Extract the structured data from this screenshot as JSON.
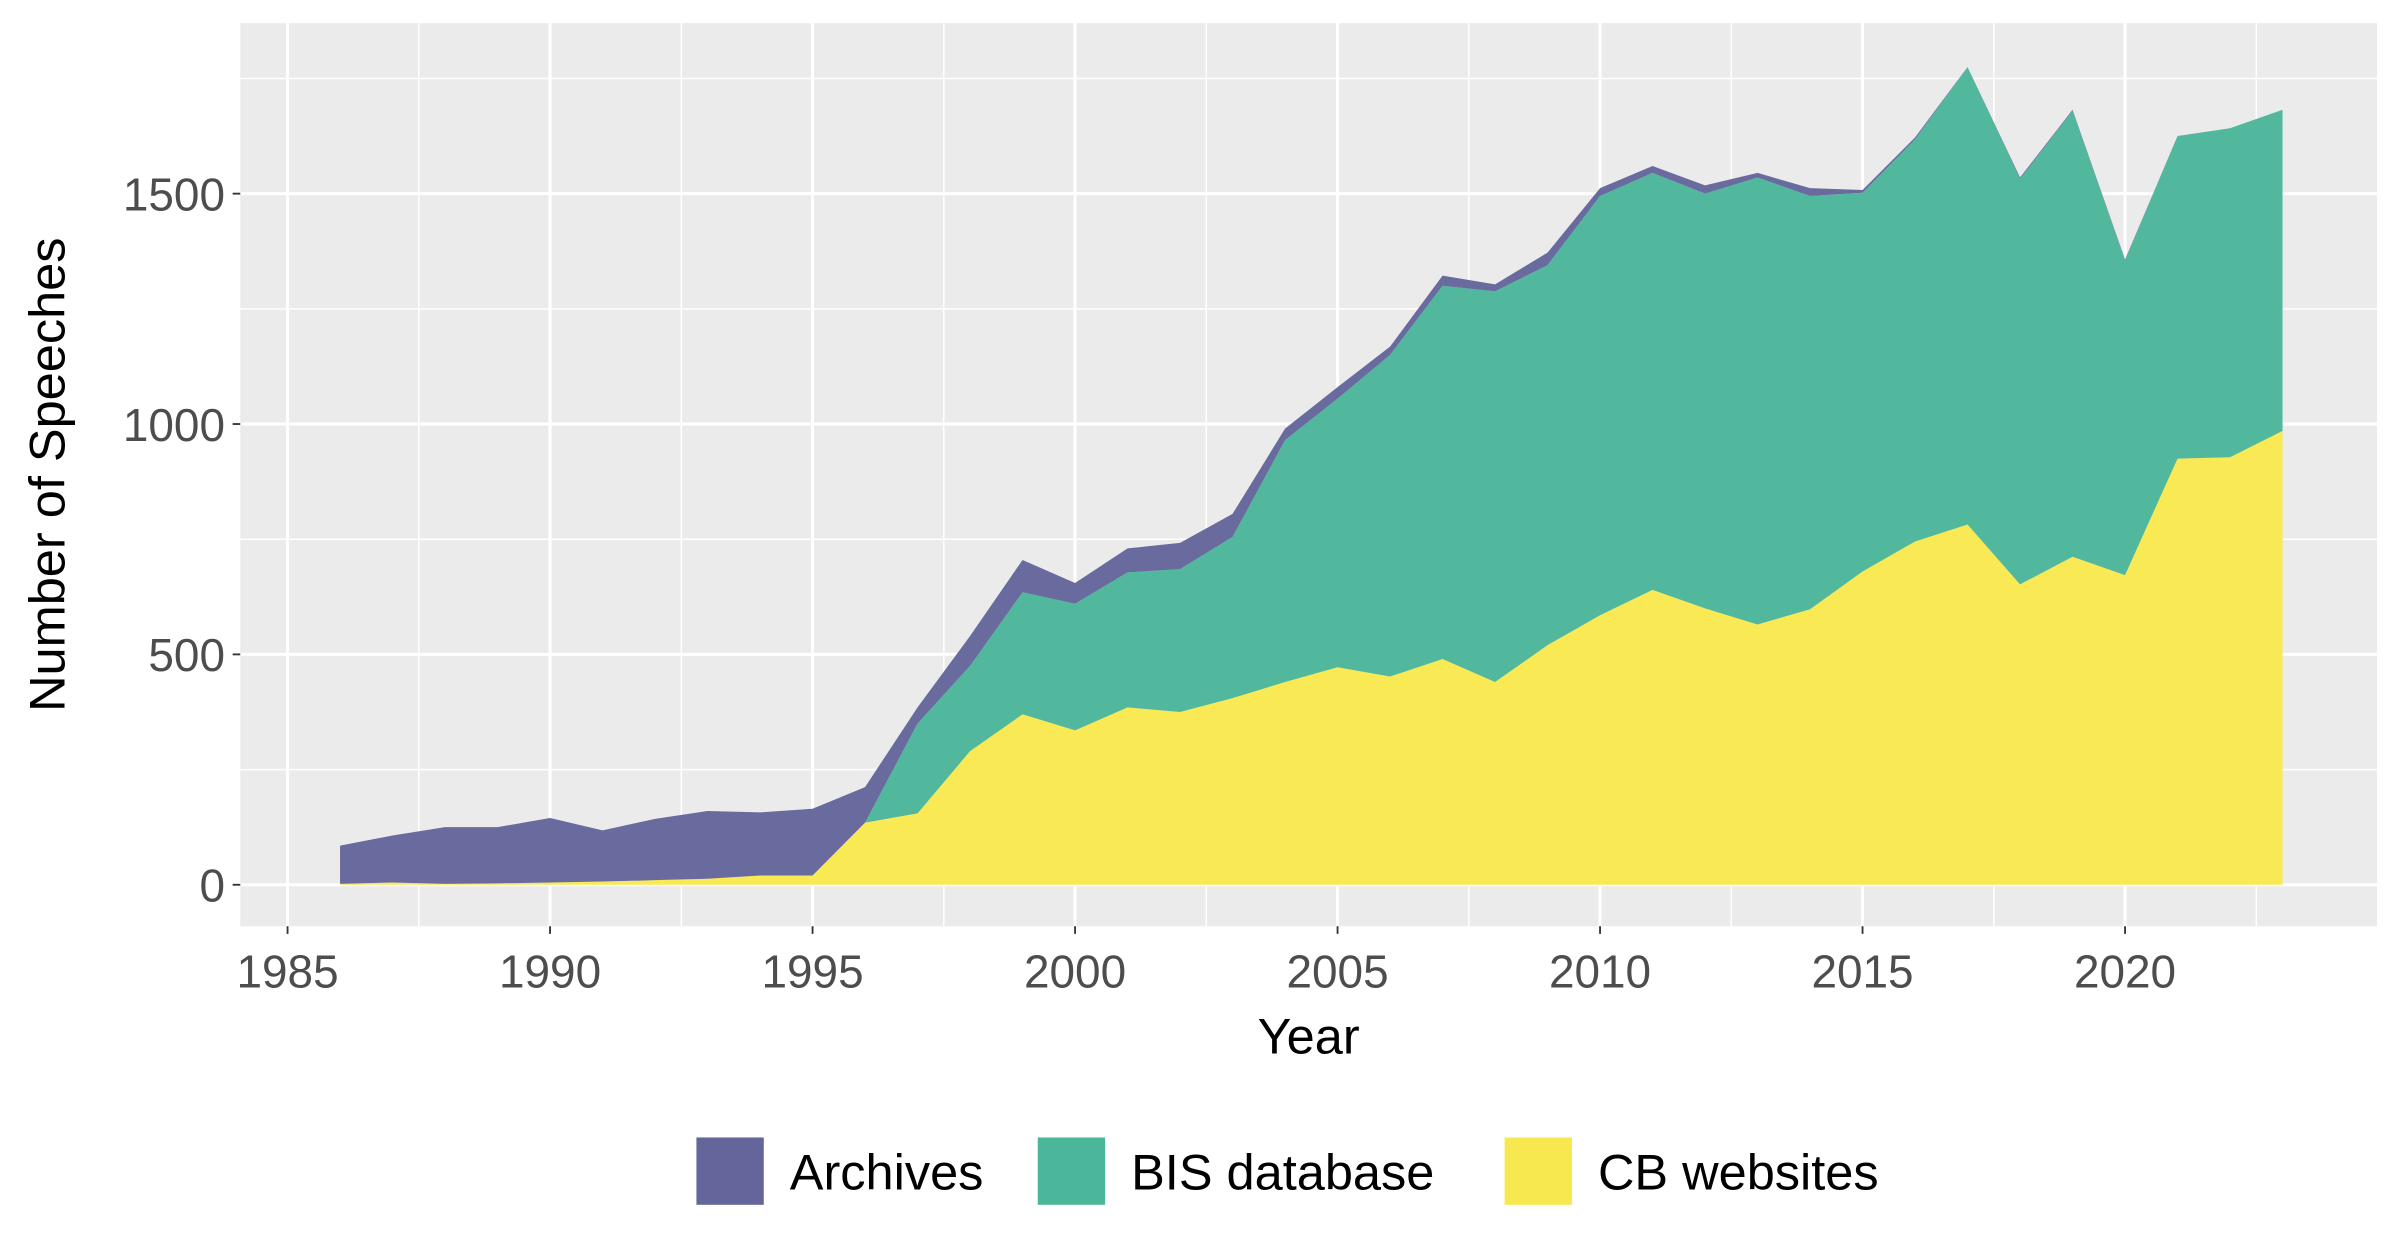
{
  "chart_data": {
    "type": "area",
    "stacked": true,
    "title": "",
    "xlabel": "Year",
    "ylabel": "Number of Speeches",
    "xlim": [
      1984.1,
      2024.8
    ],
    "ylim": [
      -90,
      1870
    ],
    "x_ticks": [
      1985,
      1990,
      1995,
      2000,
      2005,
      2010,
      2015,
      2020
    ],
    "y_ticks": [
      0,
      500,
      1000,
      1500
    ],
    "grid": true,
    "legend_position": "bottom",
    "x": [
      1986,
      1987,
      1988,
      1989,
      1990,
      1991,
      1992,
      1993,
      1994,
      1995,
      1996,
      1997,
      1998,
      1999,
      2000,
      2001,
      2002,
      2003,
      2004,
      2005,
      2006,
      2007,
      2008,
      2009,
      2010,
      2011,
      2012,
      2013,
      2014,
      2015,
      2016,
      2017,
      2018,
      2019,
      2020,
      2021,
      2022,
      2023
    ],
    "series": [
      {
        "name": "Archives",
        "color": "#64659b",
        "values": [
          83,
          102,
          123,
          122,
          140,
          111,
          133,
          147,
          137,
          145,
          77,
          35,
          65,
          70,
          45,
          52,
          57,
          50,
          25,
          25,
          18,
          22,
          15,
          27,
          17,
          15,
          18,
          10,
          17,
          6,
          4,
          0,
          3,
          2,
          2,
          0,
          0,
          0
        ]
      },
      {
        "name": "BIS database",
        "color": "#4bb69a",
        "values": [
          0,
          0,
          0,
          0,
          0,
          0,
          0,
          0,
          0,
          0,
          0,
          195,
          185,
          265,
          275,
          293,
          310,
          350,
          525,
          583,
          698,
          810,
          848,
          825,
          910,
          905,
          900,
          970,
          897,
          822,
          873,
          993,
          880,
          968,
          683,
          700,
          714,
          697
        ]
      },
      {
        "name": "CB websites",
        "color": "#f8e84f",
        "values": [
          2,
          5,
          2,
          3,
          5,
          7,
          10,
          13,
          20,
          20,
          135,
          155,
          290,
          370,
          335,
          385,
          375,
          405,
          440,
          472,
          452,
          490,
          440,
          520,
          585,
          640,
          600,
          565,
          598,
          680,
          745,
          782,
          652,
          712,
          672,
          925,
          928,
          985
        ]
      }
    ]
  }
}
